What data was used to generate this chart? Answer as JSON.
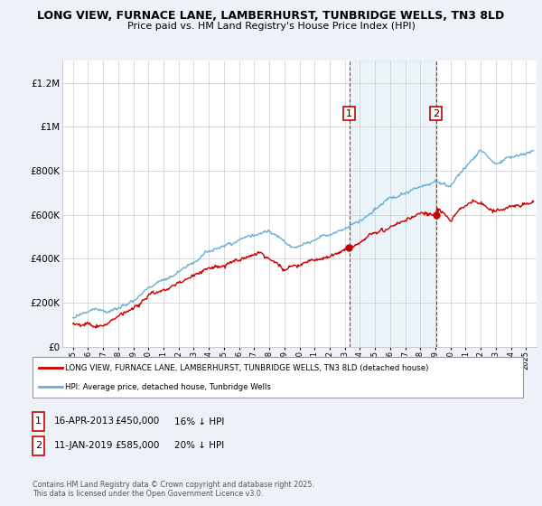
{
  "title_line1": "LONG VIEW, FURNACE LANE, LAMBERHURST, TUNBRIDGE WELLS, TN3 8LD",
  "title_line2": "Price paid vs. HM Land Registry's House Price Index (HPI)",
  "ylim": [
    0,
    1300000
  ],
  "yticks": [
    0,
    200000,
    400000,
    600000,
    800000,
    1000000,
    1200000
  ],
  "ytick_labels": [
    "£0",
    "£200K",
    "£400K",
    "£600K",
    "£800K",
    "£1M",
    "£1.2M"
  ],
  "x_start_year": 1995,
  "x_end_year": 2025,
  "hpi_color": "#6baed6",
  "price_color": "#cc0000",
  "marker1_year": 2013.29,
  "marker1_label": "1",
  "marker1_price": 450000,
  "marker2_year": 2019.04,
  "marker2_label": "2",
  "marker2_price": 585000,
  "legend_line1": "LONG VIEW, FURNACE LANE, LAMBERHURST, TUNBRIDGE WELLS, TN3 8LD (detached house)",
  "legend_line2": "HPI: Average price, detached house, Tunbridge Wells",
  "note1_label": "1",
  "note1_date": "16-APR-2013",
  "note1_price": "£450,000",
  "note1_hpi": "16% ↓ HPI",
  "note2_label": "2",
  "note2_date": "11-JAN-2019",
  "note2_price": "£585,000",
  "note2_hpi": "20% ↓ HPI",
  "footer": "Contains HM Land Registry data © Crown copyright and database right 2025.\nThis data is licensed under the Open Government Licence v3.0.",
  "background_color": "#eef2f8",
  "plot_bg_color": "#ffffff"
}
